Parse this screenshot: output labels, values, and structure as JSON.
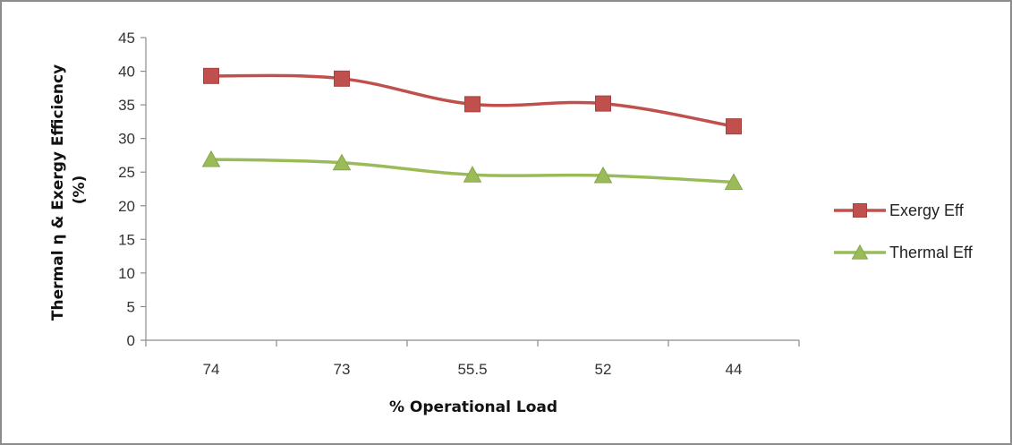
{
  "chart_data": {
    "type": "line",
    "title": "",
    "xlabel": "% Operational Load",
    "ylabel": "Thermal η & Exergy Efficiency (%)",
    "ylabel_lines": [
      "Thermal η & Exergy Efficiency",
      "(%)"
    ],
    "categories": [
      "74",
      "73",
      "55.5",
      "52",
      "44"
    ],
    "ylim": [
      0,
      45
    ],
    "yticks": [
      0,
      5,
      10,
      15,
      20,
      25,
      30,
      35,
      40,
      45
    ],
    "grid": false,
    "legend_position": "right",
    "series": [
      {
        "name": "Exergy Eff",
        "values": [
          39.3,
          38.9,
          35.1,
          35.2,
          31.8
        ],
        "color": "#c0504d",
        "marker": "square"
      },
      {
        "name": "Thermal Eff",
        "values": [
          26.9,
          26.4,
          24.6,
          24.5,
          23.5
        ],
        "color": "#9bbb59",
        "marker": "triangle"
      }
    ]
  }
}
